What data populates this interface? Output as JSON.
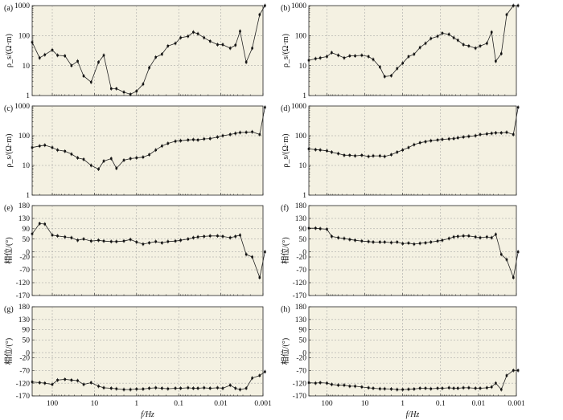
{
  "figure": {
    "x_axis_label": "f/Hz",
    "x_ticks": [
      "100",
      "10",
      "1",
      "0.1",
      "0.01",
      "0.001"
    ],
    "x_range_hz": [
      300,
      0.001
    ]
  },
  "chart_data": [
    {
      "label": "(a)",
      "type": "line",
      "yscale": "log",
      "ylabel": "ρ_s/(Ω·m)",
      "ylim": [
        1,
        1000
      ],
      "yticks": [
        "1",
        "10",
        "100",
        "1000"
      ],
      "freq": [
        300,
        200,
        150,
        100,
        75,
        50,
        35,
        25,
        18,
        12,
        8,
        6,
        4,
        3,
        2,
        1.4,
        1,
        0.7,
        0.5,
        0.35,
        0.25,
        0.18,
        0.12,
        0.09,
        0.06,
        0.045,
        0.035,
        0.025,
        0.018,
        0.012,
        0.009,
        0.006,
        0.0045,
        0.0035,
        0.0025,
        0.0018,
        0.0012,
        0.0009
      ],
      "values": [
        60,
        18,
        23,
        33,
        22,
        21,
        10,
        14,
        4.5,
        2.8,
        13,
        22,
        1.7,
        1.7,
        1.3,
        1.1,
        1.4,
        2.4,
        8.5,
        19,
        24,
        45,
        55,
        85,
        95,
        130,
        115,
        85,
        65,
        50,
        50,
        38,
        48,
        140,
        13,
        38,
        500,
        1000
      ]
    },
    {
      "label": "(b)",
      "type": "line",
      "yscale": "log",
      "ylabel": "ρ_s/(Ω·m)",
      "ylim": [
        1,
        1000
      ],
      "yticks": [
        "1",
        "10",
        "100",
        "1000"
      ],
      "freq": [
        300,
        200,
        150,
        100,
        75,
        50,
        35,
        25,
        18,
        12,
        8,
        6,
        4,
        3,
        2,
        1.4,
        1,
        0.7,
        0.5,
        0.35,
        0.25,
        0.18,
        0.12,
        0.09,
        0.06,
        0.045,
        0.035,
        0.025,
        0.018,
        0.012,
        0.009,
        0.006,
        0.0045,
        0.0035,
        0.0025,
        0.0018,
        0.0012,
        0.0009
      ],
      "values": [
        15,
        17,
        18,
        20,
        27,
        22,
        18,
        21,
        21,
        22,
        20,
        16,
        9,
        4.3,
        4.6,
        8,
        12,
        20,
        24,
        40,
        55,
        80,
        95,
        120,
        110,
        85,
        70,
        50,
        45,
        38,
        45,
        55,
        130,
        14,
        25,
        500,
        1000,
        1000
      ]
    },
    {
      "label": "(c)",
      "type": "line",
      "yscale": "log",
      "ylabel": "ρ_s/(Ω·m)",
      "ylim": [
        1,
        1000
      ],
      "yticks": [
        "1",
        "10",
        "100",
        "1000"
      ],
      "freq": [
        300,
        200,
        150,
        100,
        75,
        50,
        35,
        25,
        18,
        12,
        8,
        6,
        4,
        3,
        2,
        1.4,
        1,
        0.7,
        0.5,
        0.35,
        0.25,
        0.18,
        0.12,
        0.09,
        0.06,
        0.045,
        0.035,
        0.025,
        0.018,
        0.012,
        0.009,
        0.006,
        0.0045,
        0.0035,
        0.0025,
        0.0018,
        0.0012,
        0.0009
      ],
      "values": [
        40,
        45,
        48,
        40,
        33,
        30,
        24,
        18,
        16,
        10,
        7.5,
        14,
        17,
        8,
        15,
        17,
        18,
        19,
        23,
        33,
        45,
        55,
        65,
        68,
        72,
        74,
        72,
        78,
        80,
        90,
        100,
        110,
        120,
        128,
        130,
        135,
        110,
        900
      ]
    },
    {
      "label": "(d)",
      "type": "line",
      "yscale": "log",
      "ylabel": "ρ_s/(Ω·m)",
      "ylim": [
        1,
        1000
      ],
      "yticks": [
        "1",
        "10",
        "100",
        "1000"
      ],
      "freq": [
        300,
        200,
        150,
        100,
        75,
        50,
        35,
        25,
        18,
        12,
        8,
        6,
        4,
        3,
        2,
        1.4,
        1,
        0.7,
        0.5,
        0.35,
        0.25,
        0.18,
        0.12,
        0.09,
        0.06,
        0.045,
        0.035,
        0.025,
        0.018,
        0.012,
        0.009,
        0.006,
        0.0045,
        0.0035,
        0.0025,
        0.0018,
        0.0012,
        0.0009
      ],
      "values": [
        36,
        34,
        33,
        31,
        28,
        25,
        22,
        22,
        21,
        22,
        20,
        21,
        21,
        20,
        23,
        28,
        33,
        40,
        50,
        58,
        63,
        68,
        72,
        75,
        78,
        80,
        85,
        90,
        95,
        100,
        110,
        115,
        120,
        125,
        125,
        130,
        110,
        900
      ]
    },
    {
      "label": "(e)",
      "type": "line",
      "yscale": "linear",
      "ylabel": "相位/(°)",
      "ylim": [
        -170,
        180
      ],
      "yticks": [
        "180",
        "130",
        "90",
        "50",
        "0",
        "-20",
        "-70",
        "-120",
        "-170"
      ],
      "freq": [
        300,
        200,
        150,
        100,
        75,
        50,
        35,
        25,
        18,
        12,
        8,
        6,
        4,
        3,
        2,
        1.4,
        1,
        0.7,
        0.5,
        0.35,
        0.25,
        0.18,
        0.12,
        0.09,
        0.06,
        0.045,
        0.035,
        0.025,
        0.018,
        0.012,
        0.009,
        0.006,
        0.0045,
        0.0035,
        0.0025,
        0.0018,
        0.0012,
        0.0009
      ],
      "values": [
        70,
        110,
        108,
        65,
        62,
        58,
        55,
        45,
        50,
        42,
        45,
        42,
        40,
        40,
        42,
        48,
        38,
        30,
        35,
        40,
        35,
        40,
        42,
        45,
        50,
        55,
        58,
        60,
        62,
        62,
        60,
        55,
        60,
        65,
        -10,
        -20,
        -100,
        0
      ]
    },
    {
      "label": "(f)",
      "type": "line",
      "yscale": "linear",
      "ylabel": "相位/(°)",
      "ylim": [
        -170,
        180
      ],
      "yticks": [
        "180",
        "130",
        "90",
        "50",
        "0",
        "-20",
        "-70",
        "-120",
        "-170"
      ],
      "freq": [
        300,
        200,
        150,
        100,
        75,
        50,
        35,
        25,
        18,
        12,
        8,
        6,
        4,
        3,
        2,
        1.4,
        1,
        0.7,
        0.5,
        0.35,
        0.25,
        0.18,
        0.12,
        0.09,
        0.06,
        0.045,
        0.035,
        0.025,
        0.018,
        0.012,
        0.009,
        0.006,
        0.0045,
        0.0035,
        0.0025,
        0.0018,
        0.0012,
        0.0009
      ],
      "values": [
        92,
        92,
        90,
        88,
        60,
        55,
        52,
        48,
        45,
        42,
        40,
        38,
        38,
        38,
        36,
        38,
        32,
        34,
        30,
        33,
        35,
        38,
        42,
        45,
        52,
        58,
        60,
        62,
        62,
        58,
        55,
        58,
        55,
        68,
        -10,
        -30,
        -100,
        0
      ]
    },
    {
      "label": "(g)",
      "type": "line",
      "yscale": "linear",
      "ylabel": "相位/(°)",
      "ylim": [
        -170,
        180
      ],
      "yticks": [
        "180",
        "130",
        "90",
        "50",
        "0",
        "-20",
        "-70",
        "-120",
        "-170"
      ],
      "freq": [
        300,
        200,
        150,
        100,
        75,
        50,
        35,
        25,
        18,
        12,
        8,
        6,
        4,
        3,
        2,
        1.4,
        1,
        0.7,
        0.5,
        0.35,
        0.25,
        0.18,
        0.12,
        0.09,
        0.06,
        0.045,
        0.035,
        0.025,
        0.018,
        0.012,
        0.009,
        0.006,
        0.0045,
        0.0035,
        0.0025,
        0.0018,
        0.0012,
        0.0009
      ],
      "values": [
        -115,
        -118,
        -120,
        -125,
        -108,
        -105,
        -108,
        -110,
        -125,
        -118,
        -132,
        -138,
        -140,
        -142,
        -145,
        -145,
        -143,
        -143,
        -140,
        -138,
        -140,
        -142,
        -140,
        -140,
        -138,
        -140,
        -140,
        -138,
        -140,
        -138,
        -140,
        -128,
        -140,
        -145,
        -140,
        -100,
        -90,
        -75
      ]
    },
    {
      "label": "(h)",
      "type": "line",
      "yscale": "linear",
      "ylabel": "相位/(°)",
      "ylim": [
        -170,
        180
      ],
      "yticks": [
        "180",
        "130",
        "90",
        "50",
        "0",
        "-20",
        "-70",
        "-120",
        "-170"
      ],
      "freq": [
        300,
        200,
        150,
        100,
        75,
        50,
        35,
        25,
        18,
        12,
        8,
        6,
        4,
        3,
        2,
        1.4,
        1,
        0.7,
        0.5,
        0.35,
        0.25,
        0.18,
        0.12,
        0.09,
        0.06,
        0.045,
        0.035,
        0.025,
        0.018,
        0.012,
        0.009,
        0.006,
        0.0045,
        0.0035,
        0.0025,
        0.0018,
        0.0012,
        0.0009
      ],
      "values": [
        -118,
        -120,
        -118,
        -120,
        -125,
        -128,
        -128,
        -132,
        -132,
        -135,
        -138,
        -140,
        -142,
        -142,
        -143,
        -145,
        -145,
        -144,
        -143,
        -140,
        -140,
        -142,
        -140,
        -140,
        -138,
        -140,
        -140,
        -138,
        -138,
        -140,
        -140,
        -138,
        -135,
        -120,
        -145,
        -90,
        -70,
        -70
      ]
    }
  ]
}
